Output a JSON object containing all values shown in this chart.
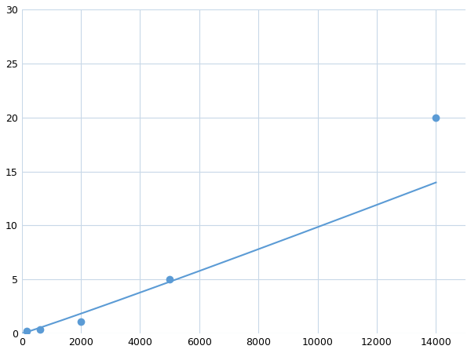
{
  "x_data": [
    156,
    625,
    2000,
    5000,
    14000
  ],
  "y_data": [
    0.2,
    0.4,
    1.1,
    5.0,
    20.0
  ],
  "line_color": "#5b9bd5",
  "marker_color": "#5b9bd5",
  "marker_size": 7,
  "line_width": 1.5,
  "xlim": [
    0,
    15000
  ],
  "ylim": [
    0,
    30
  ],
  "xticks": [
    0,
    2000,
    4000,
    6000,
    8000,
    10000,
    12000,
    14000
  ],
  "yticks": [
    0,
    5,
    10,
    15,
    20,
    25,
    30
  ],
  "grid_color": "#c8d8e8",
  "bg_color": "#ffffff",
  "fig_width": 6.0,
  "fig_height": 4.5,
  "dpi": 100
}
